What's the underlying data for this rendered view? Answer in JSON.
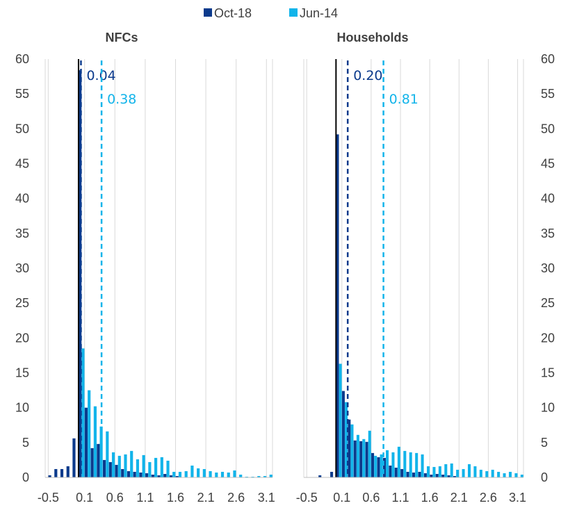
{
  "chart_data": {
    "type": "bar",
    "colors": {
      "Oct-18": "#0b3a8c",
      "Jun-14": "#12b4ea"
    },
    "legend": {
      "position": "top-center",
      "entries": [
        "Oct-18",
        "Jun-14"
      ]
    },
    "y_ticks": [
      "0",
      "5",
      "10",
      "15",
      "20",
      "25",
      "30",
      "35",
      "40",
      "45",
      "50",
      "55",
      "60"
    ],
    "x_ticks": [
      "-0.5",
      "0.1",
      "0.6",
      "1.1",
      "1.6",
      "2.1",
      "2.6",
      "3.1"
    ],
    "ylim": [
      0,
      60
    ],
    "xlim": [
      -0.55,
      3.2
    ],
    "bin_width": 0.1,
    "grid": "vertical",
    "panels": [
      {
        "title": "NFCs",
        "zero_line": 0.0,
        "series": [
          {
            "name": "Oct-18",
            "x": [
              -0.45,
              -0.35,
              -0.25,
              -0.15,
              -0.05,
              0.05,
              0.15,
              0.25,
              0.35,
              0.45,
              0.55,
              0.65,
              0.75,
              0.85,
              0.95,
              1.05,
              1.15,
              1.25,
              1.35,
              1.45,
              1.55,
              1.65
            ],
            "values": [
              0.3,
              1.2,
              1.2,
              1.6,
              5.6,
              58.4,
              10,
              4.2,
              4.8,
              2.5,
              2.2,
              1.8,
              1.2,
              0.9,
              0.8,
              0.7,
              0.6,
              0.4,
              0.3,
              0.5,
              0.3,
              0.2
            ]
          },
          {
            "name": "Jun-14",
            "x": [
              0.05,
              0.15,
              0.25,
              0.35,
              0.45,
              0.55,
              0.65,
              0.75,
              0.85,
              0.95,
              1.05,
              1.15,
              1.25,
              1.35,
              1.45,
              1.55,
              1.65,
              1.75,
              1.85,
              1.95,
              2.05,
              2.15,
              2.25,
              2.35,
              2.45,
              2.55,
              2.65,
              2.75,
              2.85,
              2.95,
              3.05,
              3.15
            ],
            "values": [
              18.5,
              12.5,
              10.2,
              7.3,
              6.6,
              3.6,
              3.1,
              3.3,
              3.8,
              2.6,
              3.2,
              2.2,
              2.8,
              2.9,
              2.4,
              0.8,
              0.8,
              0.9,
              1.7,
              1.3,
              1.2,
              0.9,
              0.7,
              0.8,
              0.7,
              1.0,
              0.4,
              0.1,
              0.1,
              0.2,
              0.2,
              0.4
            ]
          }
        ],
        "markers": [
          {
            "name": "Oct-18",
            "x": 0.04,
            "label": "0.04"
          },
          {
            "name": "Jun-14",
            "x": 0.38,
            "label": "0.38"
          }
        ]
      },
      {
        "title": "Households",
        "zero_line": 0.0,
        "series": [
          {
            "name": "Oct-18",
            "x": [
              -0.25,
              -0.05,
              0.05,
              0.15,
              0.25,
              0.35,
              0.45,
              0.55,
              0.65,
              0.75,
              0.85,
              0.95,
              1.05,
              1.15,
              1.25,
              1.35,
              1.45,
              1.55,
              1.65,
              1.75,
              1.85,
              1.95,
              2.05
            ],
            "values": [
              0.3,
              0.8,
              49.2,
              12.4,
              8.3,
              5.3,
              5.2,
              5.1,
              3.5,
              2.9,
              2.8,
              1.7,
              1.4,
              1.2,
              0.8,
              0.7,
              0.8,
              0.6,
              0.4,
              0.5,
              0.4,
              0.3,
              0.2
            ]
          },
          {
            "name": "Jun-14",
            "x": [
              0.05,
              0.15,
              0.25,
              0.35,
              0.45,
              0.55,
              0.65,
              0.75,
              0.85,
              0.95,
              1.05,
              1.15,
              1.25,
              1.35,
              1.45,
              1.55,
              1.65,
              1.75,
              1.85,
              1.95,
              2.05,
              2.15,
              2.25,
              2.35,
              2.45,
              2.55,
              2.65,
              2.75,
              2.85,
              2.95,
              3.05,
              3.15
            ],
            "values": [
              16.3,
              10.8,
              7.6,
              6.1,
              5.5,
              6.7,
              3.1,
              3.3,
              3.9,
              3.6,
              4.4,
              3.8,
              3.6,
              3.5,
              3.3,
              1.6,
              1.5,
              1.6,
              1.9,
              2.0,
              1.1,
              1.2,
              1.9,
              1.6,
              1.1,
              0.9,
              1.1,
              0.8,
              0.6,
              0.8,
              0.6,
              0.4
            ]
          }
        ],
        "markers": [
          {
            "name": "Oct-18",
            "x": 0.2,
            "label": "0.20"
          },
          {
            "name": "Jun-14",
            "x": 0.81,
            "label": "0.81"
          }
        ]
      }
    ]
  }
}
